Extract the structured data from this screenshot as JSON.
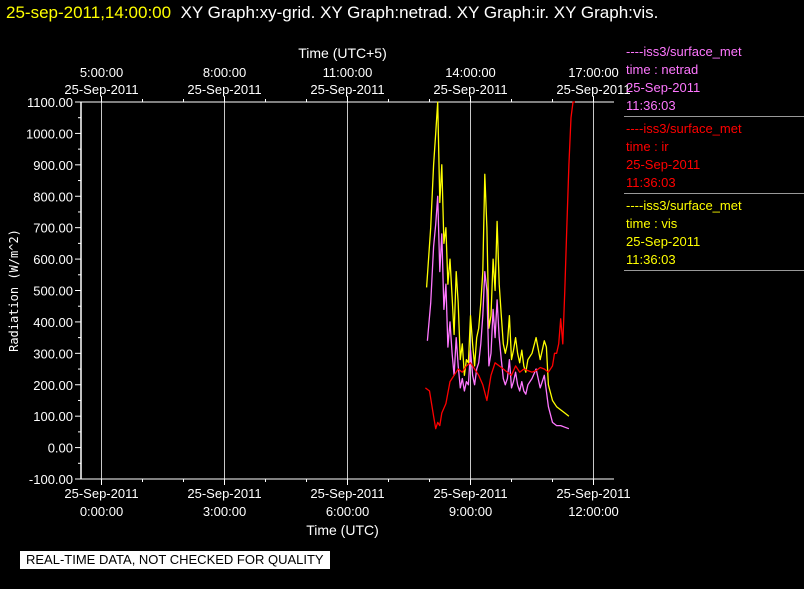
{
  "header": {
    "timestamp": "25-sep-2011,14:00:00",
    "graph_titles": "XY Graph:xy-grid.  XY Graph:netrad.  XY Graph:ir.  XY Graph:vis."
  },
  "footer": {
    "notice": "REAL-TIME DATA, NOT CHECKED FOR QUALITY"
  },
  "colors": {
    "netrad": "#ff77ff",
    "ir": "#ff0000",
    "vis": "#ffff00",
    "grid": "#c8c8c8",
    "axes": "#ffffff"
  },
  "legend": [
    {
      "key": "netrad",
      "source": "----iss3/surface_met",
      "var": "time : netrad",
      "date": "25-Sep-2011",
      "time": "11:36:03"
    },
    {
      "key": "ir",
      "source": "----iss3/surface_met",
      "var": "time : ir",
      "date": "25-Sep-2011",
      "time": "11:36:03"
    },
    {
      "key": "vis",
      "source": "----iss3/surface_met",
      "var": "time : vis",
      "date": "25-Sep-2011",
      "time": "11:36:03"
    }
  ],
  "chart_data": {
    "type": "line",
    "xlabel": "Time (UTC)",
    "x2label": "Time (UTC+5)",
    "ylabel": "Radiation (W/m^2)",
    "xlim": [
      -0.5,
      12.5
    ],
    "ylim": [
      -100,
      1100
    ],
    "yticks": [
      -100,
      0,
      100,
      200,
      300,
      400,
      500,
      600,
      700,
      800,
      900,
      1000,
      1100
    ],
    "ytick_labels": [
      "-100.00",
      "0.00",
      "100.00",
      "200.00",
      "300.00",
      "400.00",
      "500.00",
      "600.00",
      "700.00",
      "800.00",
      "900.00",
      "1000.00",
      "1100.00"
    ],
    "xticks": [
      0,
      3,
      6,
      9,
      12
    ],
    "xtick_labels_top_row": [
      "25-Sep-2011",
      "25-Sep-2011",
      "25-Sep-2011",
      "25-Sep-2011",
      "25-Sep-2011"
    ],
    "xtick_labels_bottom_row": [
      "0:00:00",
      "3:00:00",
      "6:00:00",
      "9:00:00",
      "12:00:00"
    ],
    "x2tick_labels_top_row": [
      "5:00:00",
      "8:00:00",
      "11:00:00",
      "14:00:00",
      "17:00:00"
    ],
    "x2tick_labels_bottom_row": [
      "25-Sep-2011",
      "25-Sep-2011",
      "25-Sep-2011",
      "25-Sep-2011",
      "25-Sep-2011"
    ],
    "grid": true,
    "legend_position": "right",
    "series": [
      {
        "key": "vis",
        "x": [
          7.93,
          8.03,
          8.1,
          8.15,
          8.2,
          8.25,
          8.3,
          8.35,
          8.4,
          8.45,
          8.5,
          8.55,
          8.6,
          8.65,
          8.7,
          8.75,
          8.8,
          8.85,
          8.9,
          8.95,
          9.0,
          9.05,
          9.1,
          9.15,
          9.2,
          9.25,
          9.3,
          9.35,
          9.4,
          9.45,
          9.5,
          9.55,
          9.6,
          9.65,
          9.7,
          9.75,
          9.8,
          9.85,
          9.9,
          9.95,
          10.0,
          10.05,
          10.1,
          10.15,
          10.2,
          10.25,
          10.3,
          10.35,
          10.4,
          10.5,
          10.6,
          10.7,
          10.8,
          10.85,
          10.9,
          11.0,
          11.1,
          11.2,
          11.3,
          11.4
        ],
        "y": [
          510,
          700,
          900,
          1000,
          1100,
          780,
          900,
          650,
          700,
          520,
          600,
          480,
          360,
          560,
          460,
          280,
          330,
          230,
          280,
          270,
          420,
          330,
          260,
          350,
          380,
          460,
          560,
          870,
          700,
          380,
          420,
          600,
          500,
          720,
          520,
          420,
          330,
          300,
          330,
          420,
          280,
          310,
          350,
          300,
          270,
          310,
          260,
          240,
          280,
          300,
          350,
          280,
          340,
          320,
          200,
          150,
          130,
          120,
          110,
          100
        ]
      },
      {
        "key": "netrad",
        "x": [
          7.95,
          8.03,
          8.1,
          8.15,
          8.2,
          8.25,
          8.3,
          8.35,
          8.4,
          8.45,
          8.5,
          8.55,
          8.6,
          8.65,
          8.7,
          8.75,
          8.8,
          8.85,
          8.9,
          8.95,
          9.0,
          9.05,
          9.1,
          9.15,
          9.2,
          9.25,
          9.3,
          9.35,
          9.4,
          9.45,
          9.5,
          9.55,
          9.6,
          9.65,
          9.7,
          9.75,
          9.8,
          9.85,
          9.9,
          9.95,
          10.0,
          10.05,
          10.1,
          10.15,
          10.2,
          10.25,
          10.3,
          10.35,
          10.4,
          10.5,
          10.6,
          10.7,
          10.8,
          10.9,
          11.0,
          11.1,
          11.2,
          11.3,
          11.4
        ],
        "y": [
          340,
          460,
          640,
          710,
          800,
          560,
          680,
          440,
          520,
          320,
          400,
          300,
          230,
          350,
          260,
          190,
          220,
          180,
          210,
          200,
          310,
          230,
          200,
          250,
          270,
          330,
          420,
          560,
          500,
          260,
          300,
          440,
          350,
          470,
          350,
          280,
          220,
          200,
          220,
          280,
          190,
          210,
          240,
          200,
          180,
          210,
          180,
          170,
          200,
          220,
          250,
          190,
          230,
          130,
          80,
          70,
          70,
          65,
          60
        ]
      },
      {
        "key": "ir",
        "x": [
          7.9,
          8.0,
          8.1,
          8.15,
          8.2,
          8.25,
          8.3,
          8.4,
          8.5,
          8.6,
          8.7,
          8.8,
          8.9,
          9.0,
          9.1,
          9.2,
          9.3,
          9.4,
          9.5,
          9.6,
          9.7,
          9.8,
          9.9,
          10.0,
          10.1,
          10.2,
          10.3,
          10.4,
          10.5,
          10.6,
          10.7,
          10.8,
          10.9,
          11.0,
          11.05,
          11.1,
          11.15,
          11.2,
          11.25,
          11.3,
          11.35,
          11.4,
          11.45,
          11.5,
          11.55
        ],
        "y": [
          190,
          180,
          100,
          60,
          80,
          70,
          110,
          140,
          210,
          230,
          250,
          240,
          260,
          270,
          250,
          230,
          200,
          150,
          230,
          270,
          260,
          250,
          240,
          230,
          260,
          240,
          250,
          245,
          240,
          245,
          255,
          250,
          240,
          260,
          300,
          300,
          330,
          410,
          330,
          500,
          700,
          900,
          1050,
          1100,
          1100
        ]
      }
    ]
  }
}
